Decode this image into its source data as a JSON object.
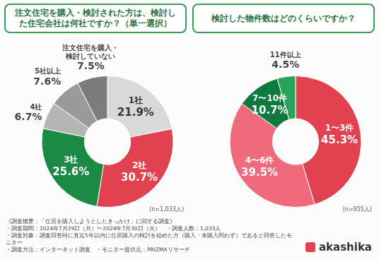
{
  "chart_data": [
    {
      "type": "doughnut",
      "title": "注文住宅を購入・検討された方は、検討した住宅会社は何社ですか？（単一選択）",
      "categories": [
        "1社",
        "2社",
        "3社",
        "4社",
        "5社以上",
        "注文住宅を購入・検討していない"
      ],
      "values": [
        21.9,
        30.7,
        25.6,
        6.7,
        7.6,
        7.5
      ],
      "value_labels": [
        "21.9%",
        "30.7%",
        "25.6%",
        "6.7%",
        "7.6%",
        "7.5%"
      ],
      "colors": [
        "#d9d9d9",
        "#e2424f",
        "#1a8a45",
        "#b5b5b5",
        "#9a9a9a",
        "#7c7c7c"
      ],
      "data_labels": true,
      "legend": false,
      "annotations": [
        "(n=1,033人)"
      ]
    },
    {
      "type": "doughnut",
      "title": "検討した物件数はどのくらいですか？",
      "categories": [
        "1〜3件",
        "4〜6件",
        "7〜10件",
        "11件以上"
      ],
      "values": [
        45.3,
        39.5,
        10.7,
        4.5
      ],
      "value_labels": [
        "45.3%",
        "39.5%",
        "10.7%",
        "4.5%"
      ],
      "colors": [
        "#e2424f",
        "#ef6a7a",
        "#0f7a3e",
        "#2aa35a"
      ],
      "data_labels": true,
      "legend": false,
      "annotations": [
        "(n=955人)"
      ]
    }
  ],
  "footer": {
    "notes": [
      "《調査概要：「住居を購入しようとしたきっかけ」に関する調査》",
      "・調査期間：2024年7月29日（月）〜2024年7月30日（火）",
      "・調査人数：1,033人",
      "・調査対象：調査回答時に直近5年以内に住居購入の検討を始めた方（購入・未購入問わず）であると回答したモニター",
      "・調査方法：インターネット調査",
      "・モニター提供元：PRIZMAリサーチ"
    ],
    "logo": "akashika"
  }
}
